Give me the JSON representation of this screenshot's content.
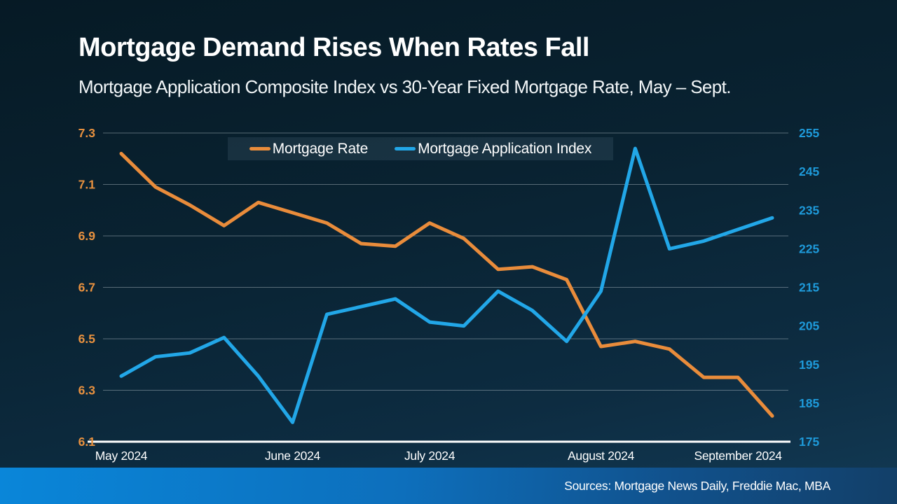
{
  "header": {
    "title": "Mortgage Demand Rises When Rates Fall",
    "subtitle": "Mortgage Application Composite Index vs 30-Year Fixed Mortgage Rate, May – Sept."
  },
  "legend": {
    "items": [
      {
        "label": "Mortgage Rate",
        "color": "#e98c3b"
      },
      {
        "label": "Mortgage Application Index",
        "color": "#22a7e8"
      }
    ]
  },
  "footer": {
    "sources": "Sources: Mortgage News Daily, Freddie Mac, MBA"
  },
  "chart_data": {
    "type": "line",
    "title": "Mortgage Demand Rises When Rates Fall",
    "subtitle": "Mortgage Application Composite Index vs 30-Year Fixed Mortgage Rate, May – Sept.",
    "x_axis": {
      "labels": [
        "May 2024",
        "June 2024",
        "July 2024",
        "August 2024",
        "September 2024"
      ],
      "label_point_indices": [
        0,
        5,
        9,
        14,
        18
      ],
      "points_total": 20,
      "frequency": "weekly"
    },
    "left_axis": {
      "title": "30-Year Fixed Mortgage Rate",
      "ticks": [
        7.3,
        7.1,
        6.9,
        6.7,
        6.5,
        6.3,
        6.1
      ],
      "range": [
        6.1,
        7.3
      ],
      "color": "#e8913f"
    },
    "right_axis": {
      "title": "Mortgage Application Composite Index",
      "ticks": [
        255,
        245,
        235,
        225,
        215,
        205,
        195,
        185,
        175
      ],
      "range": [
        175,
        255
      ],
      "color": "#1e9ada"
    },
    "grid": true,
    "legend_position": "top-center",
    "series": [
      {
        "name": "Mortgage Rate",
        "axis": "left",
        "color": "#e98c3b",
        "values": [
          7.22,
          7.09,
          7.02,
          6.94,
          7.03,
          6.99,
          6.95,
          6.87,
          6.86,
          6.95,
          6.89,
          6.77,
          6.78,
          6.73,
          6.47,
          6.49,
          6.46,
          6.35,
          6.35,
          6.2
        ]
      },
      {
        "name": "Mortgage Application Index",
        "axis": "right",
        "color": "#22a7e8",
        "values": [
          192,
          197,
          198,
          202,
          192,
          180,
          208,
          210,
          212,
          206,
          205,
          214,
          209,
          201,
          214,
          251,
          225,
          227,
          230,
          233
        ]
      }
    ]
  }
}
